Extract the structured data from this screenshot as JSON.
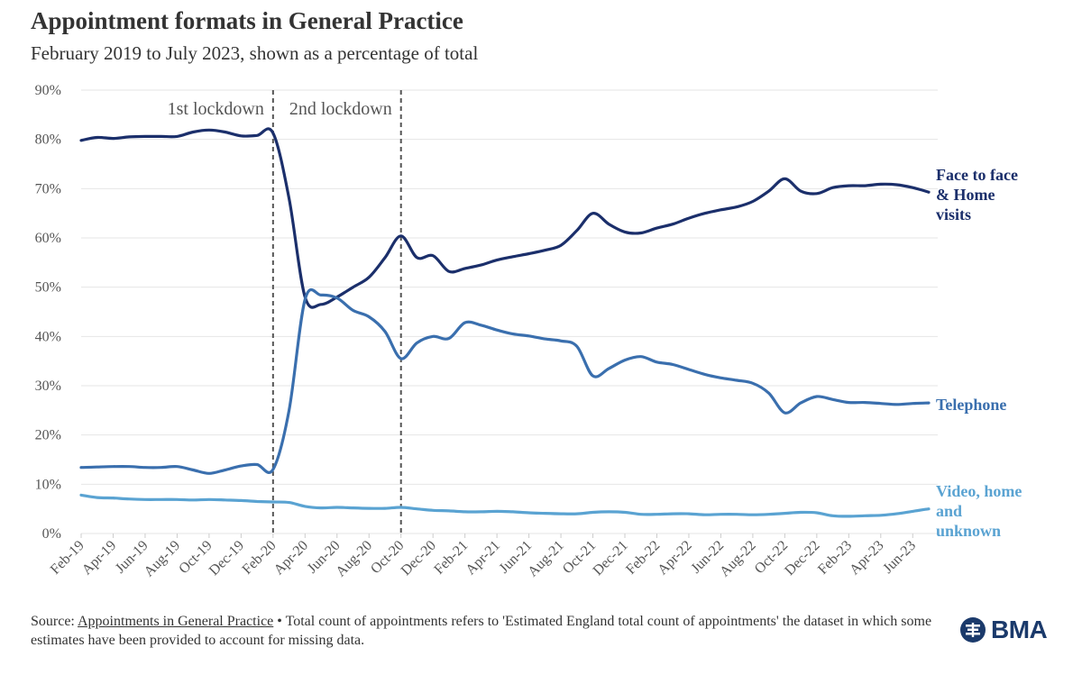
{
  "title": "Appointment formats in General Practice",
  "subtitle": "February 2019 to July 2023, shown as a percentage of total",
  "footer": {
    "prefix": "Source: ",
    "link_text": "Appointments in General Practice",
    "rest": " • Total count of appointments refers to 'Estimated England total count of appointments' the dataset in which some estimates have been provided to account for missing data."
  },
  "logo": {
    "text": "BMA",
    "icon": "bma-crest-icon"
  },
  "colors": {
    "face": "#1b2f6b",
    "phone": "#3a6fae",
    "video": "#5aa3d2",
    "grid": "#e6e6e6",
    "annotation": "#555555"
  },
  "chart_data": {
    "type": "line",
    "title": "Appointment formats in General Practice",
    "ylim": [
      0,
      90
    ],
    "y_ticks": [
      0,
      10,
      20,
      30,
      40,
      50,
      60,
      70,
      80,
      90
    ],
    "y_tick_labels": [
      "0%",
      "10%",
      "20%",
      "30%",
      "40%",
      "50%",
      "60%",
      "70%",
      "80%",
      "90%"
    ],
    "x_labels": [
      "Feb-19",
      "Apr-19",
      "Jun-19",
      "Aug-19",
      "Oct-19",
      "Dec-19",
      "Feb-20",
      "Apr-20",
      "Jun-20",
      "Aug-20",
      "Oct-20",
      "Dec-20",
      "Feb-21",
      "Apr-21",
      "Jun-21",
      "Aug-21",
      "Oct-21",
      "Dec-21",
      "Feb-22",
      "Apr-22",
      "Jun-22",
      "Aug-22",
      "Oct-22",
      "Dec-22",
      "Feb-23",
      "Apr-23",
      "Jun-23"
    ],
    "months": [
      "Feb-19",
      "Mar-19",
      "Apr-19",
      "May-19",
      "Jun-19",
      "Jul-19",
      "Aug-19",
      "Sep-19",
      "Oct-19",
      "Nov-19",
      "Dec-19",
      "Jan-20",
      "Feb-20",
      "Mar-20",
      "Apr-20",
      "May-20",
      "Jun-20",
      "Jul-20",
      "Aug-20",
      "Sep-20",
      "Oct-20",
      "Nov-20",
      "Dec-20",
      "Jan-21",
      "Feb-21",
      "Mar-21",
      "Apr-21",
      "May-21",
      "Jun-21",
      "Jul-21",
      "Aug-21",
      "Sep-21",
      "Oct-21",
      "Nov-21",
      "Dec-21",
      "Jan-22",
      "Feb-22",
      "Mar-22",
      "Apr-22",
      "May-22",
      "Jun-22",
      "Jul-22",
      "Aug-22",
      "Sep-22",
      "Oct-22",
      "Nov-22",
      "Dec-22",
      "Jan-23",
      "Feb-23",
      "Mar-23",
      "Apr-23",
      "May-23",
      "Jun-23",
      "Jul-23"
    ],
    "annotations": [
      {
        "label": "1st lockdown",
        "at": "Feb-20"
      },
      {
        "label": "2nd lockdown",
        "at": "Oct-20"
      }
    ],
    "series": [
      {
        "name": "Face to face & Home visits",
        "label_lines": [
          "Face to face",
          "& Home",
          "visits"
        ],
        "color": "#1b2f6b",
        "values": [
          79.8,
          80.4,
          80.2,
          80.5,
          80.6,
          80.6,
          80.6,
          81.5,
          81.9,
          81.5,
          80.7,
          80.8,
          81.3,
          68.0,
          48.0,
          46.5,
          48.0,
          50.0,
          52.0,
          56.0,
          60.4,
          56.0,
          56.4,
          53.2,
          53.8,
          54.5,
          55.5,
          56.2,
          56.8,
          57.5,
          58.5,
          61.5,
          65.0,
          62.8,
          61.2,
          61.0,
          62.0,
          62.8,
          64.0,
          65.0,
          65.7,
          66.3,
          67.4,
          69.5,
          72.0,
          69.5,
          69.0,
          70.2,
          70.6,
          70.6,
          70.9,
          70.8,
          70.2,
          69.3
        ]
      },
      {
        "name": "Telephone",
        "label_lines": [
          "Telephone"
        ],
        "color": "#3a6fae",
        "values": [
          13.4,
          13.5,
          13.6,
          13.6,
          13.4,
          13.4,
          13.6,
          12.9,
          12.2,
          12.9,
          13.7,
          14.0,
          13.0,
          25.0,
          47.5,
          48.4,
          47.8,
          45.3,
          44.0,
          41.0,
          35.5,
          38.7,
          40.0,
          39.6,
          42.8,
          42.3,
          41.3,
          40.5,
          40.1,
          39.5,
          39.1,
          38.0,
          32.0,
          33.5,
          35.2,
          35.9,
          34.8,
          34.3,
          33.3,
          32.3,
          31.6,
          31.1,
          30.5,
          28.5,
          24.5,
          26.5,
          27.8,
          27.2,
          26.6,
          26.6,
          26.4,
          26.2,
          26.4,
          26.5
        ]
      },
      {
        "name": "Video, home and unknown",
        "label_lines": [
          "Video, home",
          "and",
          "unknown"
        ],
        "color": "#5aa3d2",
        "values": [
          7.8,
          7.3,
          7.2,
          7.0,
          6.9,
          6.9,
          6.9,
          6.8,
          6.9,
          6.8,
          6.7,
          6.5,
          6.4,
          6.3,
          5.5,
          5.2,
          5.3,
          5.2,
          5.1,
          5.1,
          5.3,
          5.0,
          4.7,
          4.6,
          4.4,
          4.4,
          4.5,
          4.4,
          4.2,
          4.1,
          4.0,
          4.0,
          4.3,
          4.4,
          4.3,
          3.9,
          3.9,
          4.0,
          4.0,
          3.8,
          3.9,
          3.9,
          3.8,
          3.9,
          4.1,
          4.3,
          4.2,
          3.6,
          3.5,
          3.6,
          3.7,
          4.0,
          4.5,
          5.0
        ]
      }
    ]
  }
}
